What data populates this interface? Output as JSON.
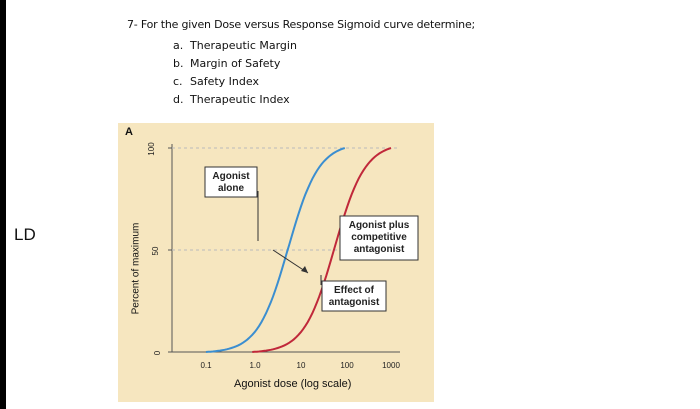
{
  "side_label": "LD",
  "question": {
    "text": "7- For the given Dose versus Response Sigmoid curve determine;",
    "items": [
      {
        "letter": "a.",
        "text": "Therapeutic Margin"
      },
      {
        "letter": "b.",
        "text": "Margin of Safety"
      },
      {
        "letter": "c.",
        "text": "Safety Index"
      },
      {
        "letter": "d.",
        "text": "Therapeutic Index"
      }
    ]
  },
  "figure": {
    "panel_letter": "A",
    "ylabel": "Percent of maximum",
    "xlabel": "Agonist dose (log scale)",
    "y_ticks": [
      "100",
      "50",
      "0"
    ],
    "x_ticks": [
      "0.1",
      "1.0",
      "10",
      "100",
      "1000"
    ],
    "annotations": {
      "agonist_alone": [
        "Agonist",
        "alone"
      ],
      "agonist_plus": [
        "Agonist plus",
        "competitive",
        "antagonist"
      ],
      "effect": [
        "Effect of",
        "antagonist"
      ]
    },
    "colors": {
      "agonist": "#3b8ed0",
      "antagonist": "#c0283a",
      "background": "#f6e6bf"
    }
  },
  "chart_data": {
    "type": "line",
    "x_scale": "log",
    "xlabel": "Agonist dose (log scale)",
    "ylabel": "Percent of maximum",
    "ylim": [
      0,
      100
    ],
    "xlim": [
      0.1,
      1000
    ],
    "series": [
      {
        "name": "Agonist alone",
        "ec50": 6,
        "x": [
          0.1,
          0.3,
          1,
          3,
          6,
          10,
          30,
          100
        ],
        "y": [
          0,
          2,
          10,
          33,
          50,
          66,
          90,
          100
        ]
      },
      {
        "name": "Agonist plus competitive antagonist",
        "ec50": 60,
        "x": [
          1,
          3,
          10,
          30,
          60,
          100,
          300,
          1000
        ],
        "y": [
          0,
          2,
          10,
          33,
          50,
          66,
          90,
          100
        ]
      }
    ]
  }
}
